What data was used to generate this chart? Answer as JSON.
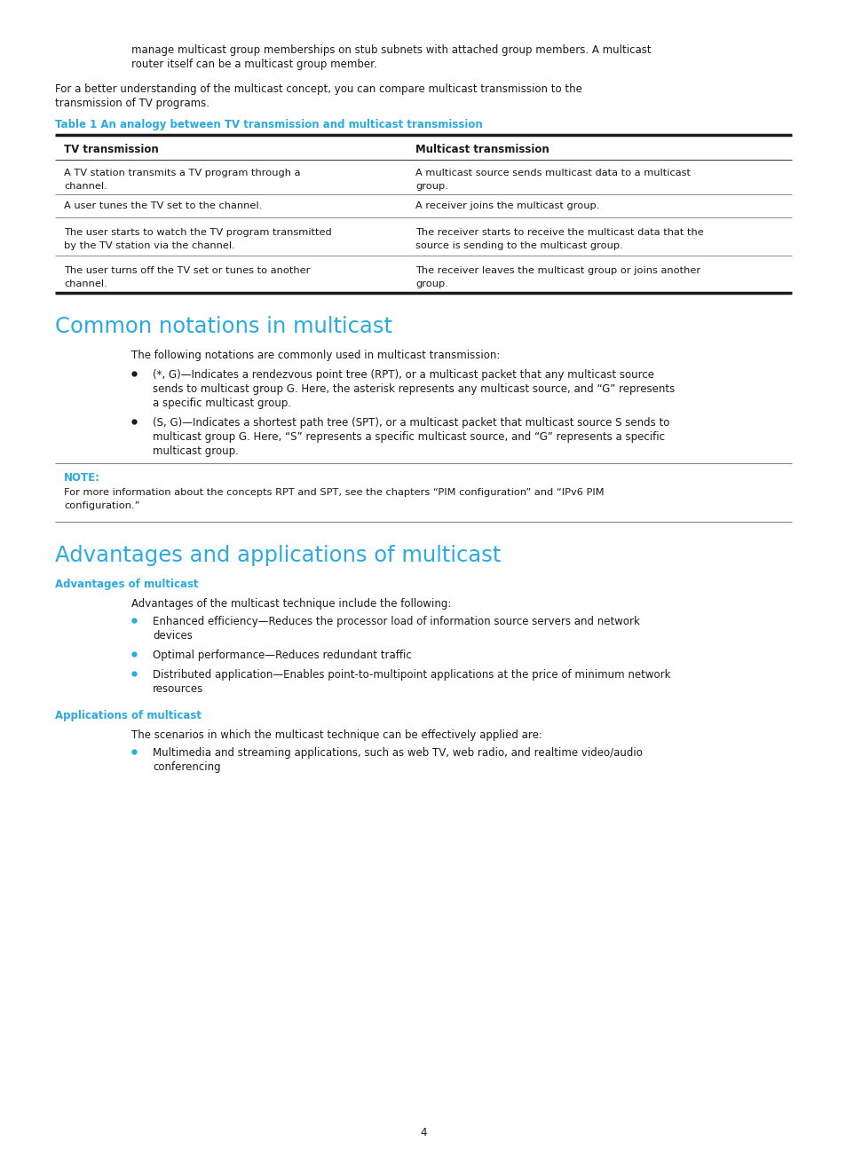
{
  "bg_color": "#ffffff",
  "text_color": "#1a1a1a",
  "cyan_color": "#29abe2",
  "page_number": "4",
  "indent_text_1": "manage multicast group memberships on stub subnets with attached group members. A multicast",
  "indent_text_2": "router itself can be a multicast group member.",
  "para1_1": "For a better understanding of the multicast concept, you can compare multicast transmission to the",
  "para1_2": "transmission of TV programs.",
  "table_title": "Table 1 An analogy between TV transmission and multicast transmission",
  "table_col1_header": "TV transmission",
  "table_col2_header": "Multicast transmission",
  "table_rows": [
    {
      "col1": [
        "A TV station transmits a TV program through a",
        "channel."
      ],
      "col2": [
        "A multicast source sends multicast data to a multicast",
        "group."
      ]
    },
    {
      "col1": [
        "A user tunes the TV set to the channel."
      ],
      "col2": [
        "A receiver joins the multicast group."
      ]
    },
    {
      "col1": [
        "The user starts to watch the TV program transmitted",
        "by the TV station via the channel."
      ],
      "col2": [
        "The receiver starts to receive the multicast data that the",
        "source is sending to the multicast group."
      ]
    },
    {
      "col1": [
        "The user turns off the TV set or tunes to another",
        "channel."
      ],
      "col2": [
        "The receiver leaves the multicast group or joins another",
        "group."
      ]
    }
  ],
  "section1_title": "Common notations in multicast",
  "section1_intro": "The following notations are commonly used in multicast transmission:",
  "section1_bullets": [
    [
      "(*, G)—Indicates a rendezvous point tree (RPT), or a multicast packet that any multicast source",
      "sends to multicast group G. Here, the asterisk represents any multicast source, and “G” represents",
      "a specific multicast group."
    ],
    [
      "(S, G)—Indicates a shortest path tree (SPT), or a multicast packet that multicast source S sends to",
      "multicast group G. Here, “S” represents a specific multicast source, and “G” represents a specific",
      "multicast group."
    ]
  ],
  "note_label": "NOTE:",
  "note_lines": [
    "For more information about the concepts RPT and SPT, see the chapters “PIM configuration” and “IPv6 PIM",
    "configuration.”"
  ],
  "section2_title": "Advantages and applications of multicast",
  "subsection1_title": "Advantages of multicast",
  "subsection1_intro": "Advantages of the multicast technique include the following:",
  "subsection1_bullets": [
    [
      "Enhanced efficiency—Reduces the processor load of information source servers and network",
      "devices"
    ],
    [
      "Optimal performance—Reduces redundant traffic"
    ],
    [
      "Distributed application—Enables point-to-multipoint applications at the price of minimum network",
      "resources"
    ]
  ],
  "subsection2_title": "Applications of multicast",
  "subsection2_intro": "The scenarios in which the multicast technique can be effectively applied are:",
  "subsection2_bullets": [
    [
      "Multimedia and streaming applications, such as web TV, web radio, and realtime video/audio",
      "conferencing"
    ]
  ]
}
